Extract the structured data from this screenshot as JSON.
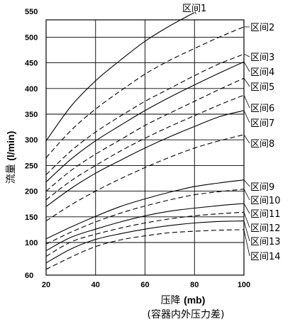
{
  "chart_data": {
    "type": "line",
    "title": "",
    "xlabel": "压降",
    "xlabel_unit": "(mb)",
    "xlabel_sub": "(容器内外压力差)",
    "ylabel": "流量",
    "ylabel_unit": "(l/min)",
    "xlim": [
      20,
      100
    ],
    "ylim": [
      60,
      550
    ],
    "x_ticks": [
      20,
      40,
      60,
      80,
      100
    ],
    "y_ticks": [
      60,
      100,
      150,
      200,
      250,
      300,
      350,
      400,
      450,
      500,
      550
    ],
    "grid": true,
    "x": [
      20,
      30,
      40,
      50,
      60,
      70,
      80,
      90,
      100
    ],
    "series": [
      {
        "name": "区间1",
        "style": "solid",
        "values": [
          298,
          365,
          415,
          455,
          492,
          522,
          548,
          null,
          null
        ]
      },
      {
        "name": "区间2",
        "style": "dashed",
        "values": [
          265,
          318,
          360,
          395,
          428,
          455,
          478,
          500,
          520
        ]
      },
      {
        "name": "区间3",
        "style": "dashed",
        "values": [
          232,
          278,
          315,
          346,
          375,
          400,
          425,
          448,
          467
        ]
      },
      {
        "name": "区间4",
        "style": "solid",
        "values": [
          218,
          262,
          298,
          328,
          357,
          383,
          407,
          430,
          452
        ]
      },
      {
        "name": "区间5",
        "style": "dashed",
        "values": [
          200,
          240,
          272,
          300,
          328,
          352,
          375,
          398,
          420
        ]
      },
      {
        "name": "区间6",
        "style": "dashed",
        "values": [
          183,
          220,
          250,
          278,
          303,
          326,
          347,
          368,
          387
        ]
      },
      {
        "name": "区间7",
        "style": "solid",
        "values": [
          170,
          205,
          235,
          260,
          284,
          306,
          326,
          345,
          357
        ]
      },
      {
        "name": "区间8",
        "style": "dashed",
        "values": [
          142,
          173,
          200,
          224,
          246,
          266,
          284,
          298,
          310
        ]
      },
      {
        "name": "区间9",
        "style": "solid",
        "values": [
          107,
          130,
          151,
          170,
          185,
          198,
          209,
          216,
          222
        ]
      },
      {
        "name": "区间10",
        "style": "dashed",
        "values": [
          98,
          120,
          140,
          157,
          171,
          183,
          193,
          199,
          204
        ]
      },
      {
        "name": "区间11",
        "style": "solid",
        "values": [
          90,
          110,
          126,
          140,
          152,
          161,
          167,
          172,
          176
        ]
      },
      {
        "name": "区间12",
        "style": "dashed",
        "values": [
          83,
          101,
          116,
          128,
          138,
          146,
          152,
          156,
          159
        ]
      },
      {
        "name": "区间13",
        "style": "solid",
        "values": [
          75,
          92,
          106,
          117,
          126,
          133,
          138,
          141,
          142
        ]
      },
      {
        "name": "区间14",
        "style": "dashed",
        "values": [
          67,
          82,
          95,
          105,
          113,
          119,
          122,
          124,
          125
        ]
      }
    ]
  }
}
